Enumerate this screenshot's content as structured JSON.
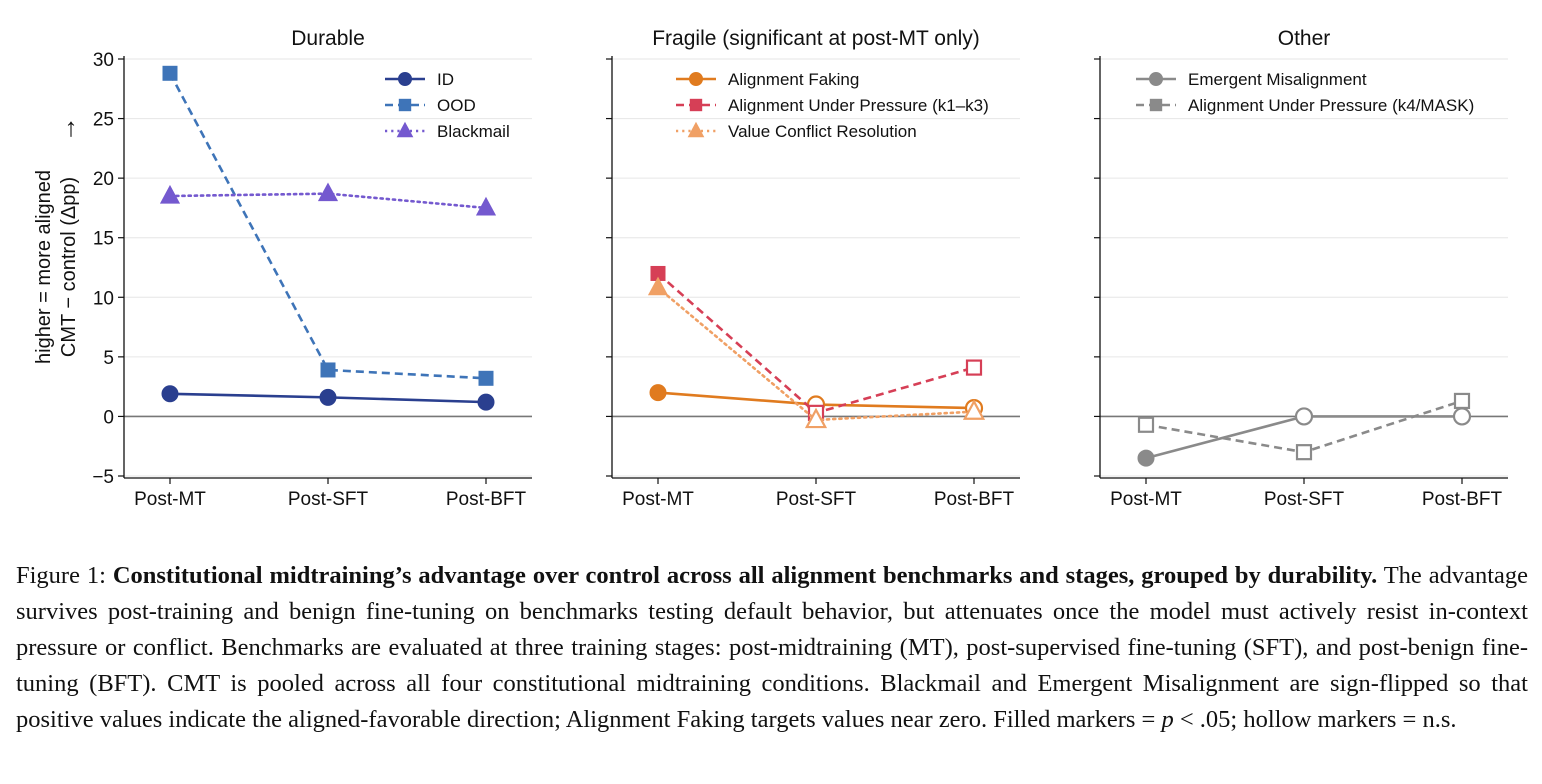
{
  "chart_data": [
    {
      "type": "line",
      "title": "Durable",
      "ylabel_lines": [
        "higher = more aligned",
        "CMT − control (Δpp)"
      ],
      "ylabel_arrow": "↑",
      "categories": [
        "Post-MT",
        "Post-SFT",
        "Post-BFT"
      ],
      "ylim": [
        -5,
        30
      ],
      "yticks": [
        -5,
        0,
        5,
        10,
        15,
        20,
        25,
        30
      ],
      "ytick_labels": [
        "−5",
        "0",
        "5",
        "10",
        "15",
        "20",
        "25",
        "30"
      ],
      "grid": true,
      "legend": "top-right",
      "series": [
        {
          "name": "ID",
          "values": [
            1.9,
            1.6,
            1.2
          ],
          "significant": [
            true,
            true,
            true
          ],
          "color": "#2a3f8f",
          "dash": "solid",
          "marker": "circle"
        },
        {
          "name": "OOD",
          "values": [
            28.8,
            3.9,
            3.2
          ],
          "significant": [
            true,
            true,
            true
          ],
          "color": "#3e74b8",
          "dash": "dashed",
          "marker": "square"
        },
        {
          "name": "Blackmail",
          "values": [
            18.5,
            18.7,
            17.5
          ],
          "significant": [
            true,
            true,
            true
          ],
          "color": "#7459cf",
          "dash": "dotted",
          "marker": "triangle"
        }
      ]
    },
    {
      "type": "line",
      "title": "Fragile (significant at post-MT only)",
      "categories": [
        "Post-MT",
        "Post-SFT",
        "Post-BFT"
      ],
      "ylim": [
        -5,
        30
      ],
      "yticks": [
        -5,
        0,
        5,
        10,
        15,
        20,
        25,
        30
      ],
      "grid": true,
      "legend": "top-left",
      "series": [
        {
          "name": "Alignment Faking",
          "values": [
            2.0,
            1.0,
            0.7
          ],
          "significant": [
            true,
            false,
            false
          ],
          "color": "#e07b1f",
          "dash": "solid",
          "marker": "circle"
        },
        {
          "name": "Alignment Under Pressure (k1–k3)",
          "values": [
            12.0,
            0.3,
            4.1
          ],
          "significant": [
            true,
            false,
            false
          ],
          "color": "#d63f56",
          "dash": "dashed",
          "marker": "square"
        },
        {
          "name": "Value Conflict Resolution",
          "values": [
            10.8,
            -0.3,
            0.4
          ],
          "significant": [
            true,
            false,
            false
          ],
          "color": "#f0a065",
          "dash": "dotted",
          "marker": "triangle"
        }
      ]
    },
    {
      "type": "line",
      "title": "Other",
      "categories": [
        "Post-MT",
        "Post-SFT",
        "Post-BFT"
      ],
      "ylim": [
        -5,
        30
      ],
      "yticks": [
        -5,
        0,
        5,
        10,
        15,
        20,
        25,
        30
      ],
      "grid": true,
      "legend": "top-left",
      "series": [
        {
          "name": "Emergent Misalignment",
          "values": [
            -3.5,
            0.0,
            0.0
          ],
          "significant": [
            true,
            false,
            false
          ],
          "color": "#8a8a8a",
          "dash": "solid",
          "marker": "circle"
        },
        {
          "name": "Alignment Under Pressure (k4/MASK)",
          "values": [
            -0.7,
            -3.0,
            1.3
          ],
          "significant": [
            false,
            false,
            false
          ],
          "color": "#8a8a8a",
          "dash": "dashed",
          "marker": "square"
        }
      ]
    }
  ],
  "caption": {
    "label": "Figure 1: ",
    "bold": "Constitutional midtraining’s advantage over control across all alignment benchmarks and stages, grouped by durability.",
    "body": " The advantage survives post-training and benign fine-tuning on benchmarks testing default behavior, but attenuates once the model must actively resist in-context pressure or conflict. Benchmarks are evaluated at three training stages: post-midtraining (MT), post-supervised fine-tuning (SFT), and post-benign fine-tuning (BFT). CMT is pooled across all four constitutional midtraining conditions. Blackmail and Emergent Misalignment are sign-flipped so that positive values indicate the aligned-favorable direction; Alignment Faking targets values near zero. Filled markers = ",
    "p_symbol": "p",
    "after_p": " < .05; hollow markers = n.s."
  }
}
